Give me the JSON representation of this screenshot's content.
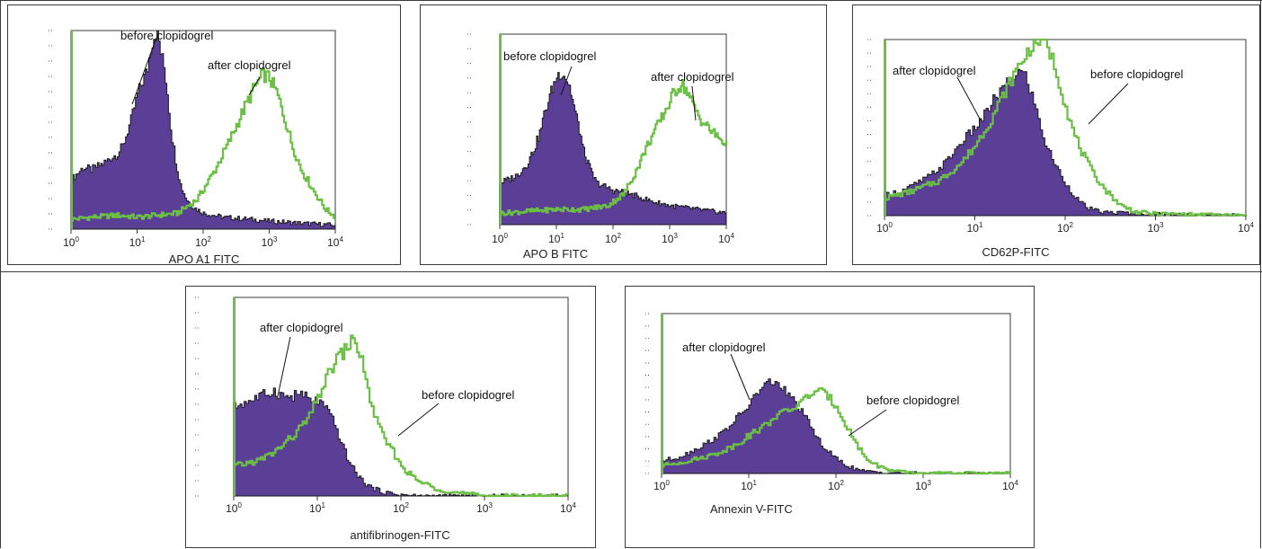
{
  "colors": {
    "filled": "#5b3f97",
    "filled_edge": "#1a1a1a",
    "outline": "#6cbf45",
    "frame": "#3a3a3a"
  },
  "x_tick_labels": [
    {
      "base": "10",
      "exp": "0"
    },
    {
      "base": "10",
      "exp": "1"
    },
    {
      "base": "10",
      "exp": "2"
    },
    {
      "base": "10",
      "exp": "3"
    },
    {
      "base": "10",
      "exp": "4"
    }
  ],
  "chart_data": [
    {
      "type": "histogram",
      "xlabel": "APO A1 FITC",
      "xscale": "log",
      "xlim": [
        1,
        10000
      ],
      "grid": false,
      "series": [
        {
          "name": "before clopidogrel",
          "style": "filled",
          "x": [
            1,
            1.5,
            2,
            3,
            4,
            5,
            6,
            8,
            10,
            12,
            14,
            16,
            18,
            20,
            22,
            25,
            28,
            32,
            38,
            45,
            55,
            70,
            100,
            200,
            500,
            1000,
            3000,
            10000
          ],
          "y": [
            0.25,
            0.31,
            0.3,
            0.33,
            0.36,
            0.38,
            0.42,
            0.55,
            0.68,
            0.75,
            0.8,
            0.92,
            0.98,
            1.0,
            0.9,
            0.82,
            0.7,
            0.5,
            0.34,
            0.22,
            0.15,
            0.11,
            0.08,
            0.06,
            0.05,
            0.04,
            0.03,
            0.02
          ]
        },
        {
          "name": "after clopidogrel",
          "style": "outline",
          "x": [
            1,
            2,
            5,
            10,
            20,
            40,
            80,
            150,
            250,
            400,
            600,
            800,
            1000,
            1300,
            1700,
            2200,
            3000,
            4500,
            7000,
            10000
          ],
          "y": [
            0.05,
            0.06,
            0.07,
            0.06,
            0.07,
            0.08,
            0.15,
            0.3,
            0.45,
            0.6,
            0.72,
            0.78,
            0.76,
            0.68,
            0.55,
            0.42,
            0.3,
            0.2,
            0.1,
            0.06
          ]
        }
      ],
      "annotations": [
        "before clopidogrel",
        "after clopidogrel"
      ]
    },
    {
      "type": "histogram",
      "xlabel": "APO B FITC",
      "xscale": "log",
      "xlim": [
        1,
        10000
      ],
      "grid": false,
      "series": [
        {
          "name": "before clopidogrel",
          "style": "filled",
          "x": [
            1,
            1.5,
            2,
            3,
            4,
            5,
            6,
            8,
            10,
            12,
            14,
            17,
            20,
            25,
            30,
            40,
            50,
            70,
            100,
            150,
            250,
            500,
            1000,
            3000,
            10000
          ],
          "y": [
            0.22,
            0.24,
            0.26,
            0.32,
            0.4,
            0.48,
            0.58,
            0.7,
            0.78,
            0.8,
            0.78,
            0.72,
            0.62,
            0.5,
            0.38,
            0.28,
            0.22,
            0.2,
            0.18,
            0.17,
            0.15,
            0.12,
            0.1,
            0.08,
            0.06
          ]
        },
        {
          "name": "after clopidogrel",
          "style": "outline",
          "x": [
            1,
            3,
            10,
            30,
            80,
            150,
            250,
            400,
            600,
            900,
            1200,
            1600,
            2000,
            2600,
            3500,
            5000,
            7000,
            10000
          ],
          "y": [
            0.06,
            0.07,
            0.08,
            0.08,
            0.1,
            0.16,
            0.28,
            0.42,
            0.52,
            0.62,
            0.7,
            0.74,
            0.7,
            0.62,
            0.55,
            0.5,
            0.46,
            0.42
          ]
        }
      ],
      "annotations": [
        "before clopidogrel",
        "after clopidogrel"
      ]
    },
    {
      "type": "histogram",
      "xlabel": "CD62P-FITC",
      "xscale": "log",
      "xlim": [
        1,
        10000
      ],
      "grid": false,
      "series": [
        {
          "name": "after clopidogrel",
          "style": "filled",
          "x": [
            1,
            1.5,
            2,
            3,
            4,
            5,
            7,
            10,
            13,
            16,
            20,
            25,
            30,
            35,
            40,
            50,
            60,
            75,
            90,
            110,
            140,
            180,
            250,
            1000,
            10000
          ],
          "y": [
            0.12,
            0.14,
            0.17,
            0.22,
            0.27,
            0.32,
            0.42,
            0.5,
            0.58,
            0.66,
            0.72,
            0.78,
            0.82,
            0.8,
            0.72,
            0.55,
            0.4,
            0.3,
            0.22,
            0.15,
            0.08,
            0.04,
            0.02,
            0.01,
            0.0
          ]
        },
        {
          "name": "before clopidogrel",
          "style": "outline",
          "x": [
            1,
            2,
            4,
            7,
            10,
            15,
            20,
            30,
            40,
            50,
            60,
            70,
            80,
            100,
            120,
            150,
            200,
            280,
            400,
            600,
            1000,
            10000
          ],
          "y": [
            0.1,
            0.14,
            0.2,
            0.3,
            0.4,
            0.55,
            0.68,
            0.85,
            0.95,
            1.0,
            0.98,
            0.9,
            0.8,
            0.62,
            0.48,
            0.36,
            0.24,
            0.14,
            0.06,
            0.02,
            0.01,
            0.0
          ]
        }
      ],
      "annotations": [
        "after clopidogrel",
        "before clopidogrel"
      ]
    },
    {
      "type": "histogram",
      "xlabel": "antifibrinogen-FITC",
      "xscale": "log",
      "xlim": [
        1,
        10000
      ],
      "grid": false,
      "series": [
        {
          "name": "after clopidogrel",
          "style": "filled",
          "x": [
            1,
            1.5,
            2,
            3,
            4,
            5,
            6,
            7,
            8,
            10,
            12,
            15,
            18,
            22,
            28,
            35,
            45,
            60,
            80,
            150,
            1000,
            10000
          ],
          "y": [
            0.45,
            0.48,
            0.5,
            0.53,
            0.5,
            0.5,
            0.52,
            0.5,
            0.48,
            0.48,
            0.45,
            0.38,
            0.3,
            0.2,
            0.12,
            0.07,
            0.04,
            0.02,
            0.01,
            0.0,
            0.0,
            0.0
          ]
        },
        {
          "name": "before clopidogrel",
          "style": "outline",
          "x": [
            1,
            2,
            3,
            5,
            8,
            10,
            13,
            17,
            20,
            25,
            30,
            35,
            40,
            50,
            60,
            80,
            100,
            150,
            250,
            400,
            600,
            1000,
            10000
          ],
          "y": [
            0.15,
            0.18,
            0.22,
            0.3,
            0.4,
            0.5,
            0.6,
            0.7,
            0.72,
            0.78,
            0.75,
            0.65,
            0.52,
            0.38,
            0.3,
            0.22,
            0.15,
            0.08,
            0.04,
            0.02,
            0.01,
            0.0,
            0.0
          ]
        }
      ],
      "annotations": [
        "after clopidogrel",
        "before clopidogrel"
      ]
    },
    {
      "type": "histogram",
      "xlabel": "Annexin V-FITC",
      "xscale": "log",
      "xlim": [
        1,
        10000
      ],
      "grid": false,
      "series": [
        {
          "name": "after clopidogrel",
          "style": "filled",
          "x": [
            1,
            1.5,
            2,
            3,
            4,
            5,
            7,
            10,
            12,
            15,
            18,
            22,
            27,
            33,
            40,
            50,
            60,
            75,
            95,
            130,
            180,
            250,
            1000,
            10000
          ],
          "y": [
            0.08,
            0.1,
            0.13,
            0.18,
            0.22,
            0.26,
            0.34,
            0.43,
            0.5,
            0.55,
            0.58,
            0.55,
            0.5,
            0.45,
            0.38,
            0.3,
            0.22,
            0.15,
            0.1,
            0.05,
            0.02,
            0.01,
            0.0,
            0.0
          ]
        },
        {
          "name": "before clopidogrel",
          "style": "outline",
          "x": [
            1,
            2,
            4,
            7,
            10,
            15,
            20,
            30,
            40,
            50,
            60,
            70,
            80,
            100,
            130,
            170,
            230,
            350,
            500,
            1000,
            10000
          ],
          "y": [
            0.05,
            0.08,
            0.12,
            0.18,
            0.24,
            0.3,
            0.36,
            0.4,
            0.45,
            0.5,
            0.52,
            0.5,
            0.48,
            0.42,
            0.3,
            0.18,
            0.08,
            0.03,
            0.01,
            0.0,
            0.0
          ]
        }
      ],
      "annotations": [
        "after clopidogrel",
        "before clopidogrel"
      ]
    }
  ]
}
